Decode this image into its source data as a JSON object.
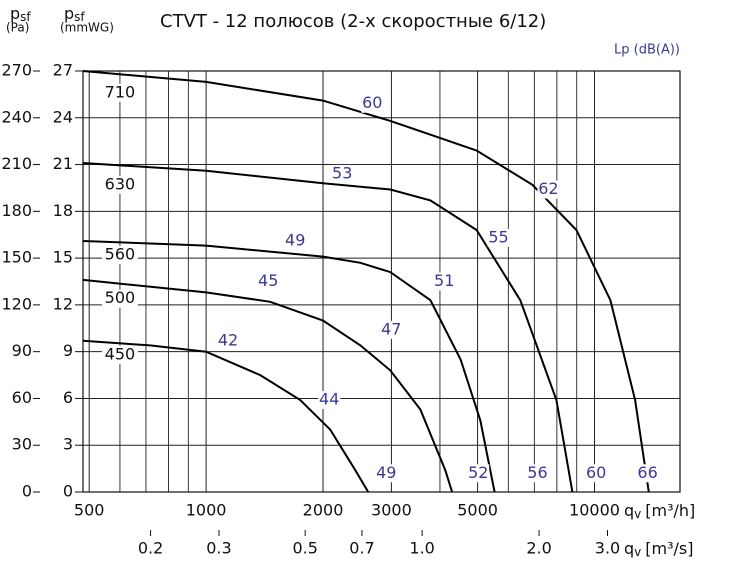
{
  "chart_data": {
    "type": "line",
    "title": "CTVT - 12 полюсов (2-х скоростные 6/12)",
    "xscale": "log",
    "xlim": [
      482,
      16600
    ],
    "xticks": [
      500,
      1000,
      2000,
      3000,
      5000,
      10000
    ],
    "xminor": [
      600,
      700,
      800,
      900,
      4000,
      6000,
      7000,
      8000,
      9000
    ],
    "xlabel": {
      "symbol": "q",
      "sub": "v",
      "unit": "[m³/h]"
    },
    "x2lim": [
      0.134,
      4.61
    ],
    "x2ticks": [
      0.2,
      0.3,
      0.5,
      0.7,
      {
        "value": 1.0,
        "label": "1.0"
      },
      {
        "value": 2.0,
        "label": "2.0"
      },
      {
        "value": 3.0,
        "label": "3.0"
      }
    ],
    "x2label": {
      "symbol": "q",
      "sub": "v",
      "unit": "[m³/s]"
    },
    "ylim": [
      0,
      27
    ],
    "yticks": [
      0,
      3,
      6,
      9,
      12,
      15,
      18,
      21,
      24,
      27
    ],
    "ylabel": {
      "symbol": "p",
      "sub": "sf",
      "unit": "(mmWG)"
    },
    "y2lim": [
      0,
      270
    ],
    "y2ticks": [
      0,
      30,
      60,
      90,
      120,
      150,
      180,
      210,
      240,
      270
    ],
    "y2label": {
      "symbol": "p",
      "sub": "sf",
      "unit": "(Pa)"
    },
    "grid": true,
    "color": "#000000",
    "annotation_color": "#3a3a96",
    "annotation_title": "Lp (dB(A))",
    "series": [
      {
        "name": "710",
        "label_x": 600,
        "label_y": 25.6,
        "x": [
          482,
          1000,
          2000,
          2980,
          4970,
          6920,
          8980,
          10990,
          12720,
          13800
        ],
        "values": [
          27,
          26.3,
          25.1,
          23.8,
          21.9,
          19.7,
          16.8,
          12.3,
          5.9,
          0
        ]
      },
      {
        "name": "630",
        "label_x": 600,
        "label_y": 19.7,
        "x": [
          482,
          1000,
          2000,
          2980,
          3780,
          4970,
          6440,
          7980,
          8770
        ],
        "values": [
          21.1,
          20.6,
          19.8,
          19.4,
          18.7,
          16.8,
          12.3,
          5.9,
          0
        ]
      },
      {
        "name": "560",
        "label_x": 600,
        "label_y": 15.2,
        "x": [
          482,
          1000,
          2000,
          2496,
          2980,
          3780,
          4520,
          5080,
          5530
        ],
        "values": [
          16.1,
          15.8,
          15.1,
          14.7,
          14.1,
          12.3,
          8.5,
          4.6,
          0
        ]
      },
      {
        "name": "500",
        "label_x": 600,
        "label_y": 12.4,
        "x": [
          482,
          1000,
          1462,
          2000,
          2496,
          2980,
          3560,
          4130,
          4300
        ],
        "values": [
          13.6,
          12.8,
          12.2,
          11.0,
          9.4,
          7.8,
          5.3,
          1.4,
          0
        ]
      },
      {
        "name": "450",
        "label_x": 600,
        "label_y": 8.8,
        "x": [
          482,
          717,
          1000,
          1378,
          1747,
          2087,
          2421,
          2614
        ],
        "values": [
          9.7,
          9.4,
          9.0,
          7.5,
          5.9,
          4.0,
          1.4,
          0
        ]
      }
    ],
    "annotations": [
      {
        "text": "60",
        "x": 2678,
        "y": 24.9
      },
      {
        "text": "53",
        "x": 2241,
        "y": 20.4
      },
      {
        "text": "49",
        "x": 1696,
        "y": 16.1
      },
      {
        "text": "45",
        "x": 1445,
        "y": 13.5
      },
      {
        "text": "42",
        "x": 1139,
        "y": 9.7
      },
      {
        "text": "62",
        "x": 7610,
        "y": 19.4
      },
      {
        "text": "55",
        "x": 5662,
        "y": 16.3
      },
      {
        "text": "51",
        "x": 4103,
        "y": 13.5
      },
      {
        "text": "47",
        "x": 2997,
        "y": 10.4
      },
      {
        "text": "44",
        "x": 2075,
        "y": 5.9
      },
      {
        "text": "66",
        "x": 13700,
        "y": 1.2
      },
      {
        "text": "60",
        "x": 10100,
        "y": 1.2
      },
      {
        "text": "56",
        "x": 7130,
        "y": 1.2
      },
      {
        "text": "52",
        "x": 5020,
        "y": 1.2
      },
      {
        "text": "49",
        "x": 2910,
        "y": 1.2
      }
    ]
  }
}
